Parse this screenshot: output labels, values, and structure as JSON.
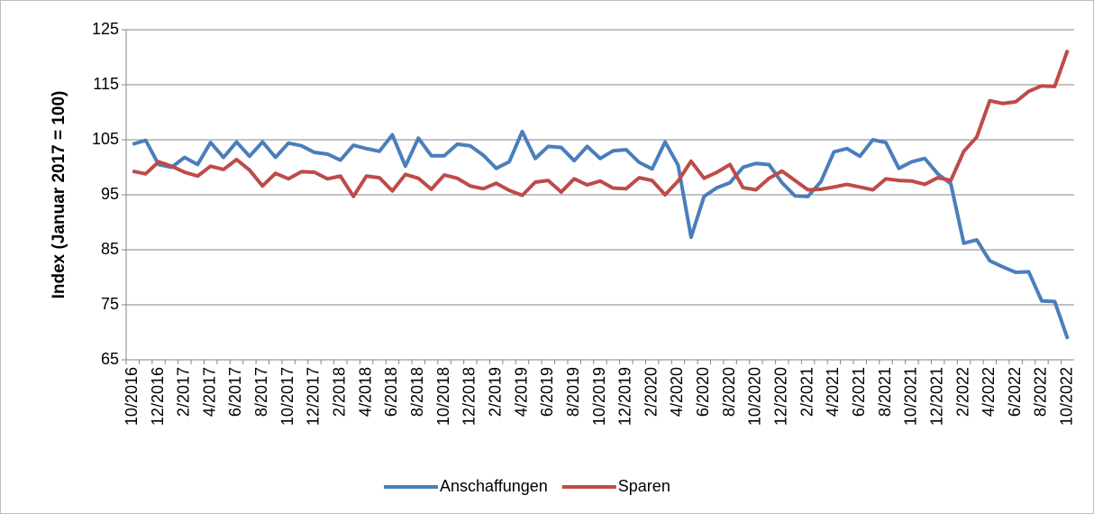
{
  "chart_data": {
    "type": "line",
    "y_label": "Index (Januar 2017 = 100)",
    "categories": [
      "10/2016",
      null,
      "12/2016",
      null,
      "2/2017",
      null,
      "4/2017",
      null,
      "6/2017",
      null,
      "8/2017",
      null,
      "10/2017",
      null,
      "12/2017",
      null,
      "2/2018",
      null,
      "4/2018",
      null,
      "6/2018",
      null,
      "8/2018",
      null,
      "10/2018",
      null,
      "12/2018",
      null,
      "2/2019",
      null,
      "4/2019",
      null,
      "6/2019",
      null,
      "8/2019",
      null,
      "10/2019",
      null,
      "12/2019",
      null,
      "2/2020",
      null,
      "4/2020",
      null,
      "6/2020",
      null,
      "8/2020",
      null,
      "10/2020",
      null,
      "12/2020",
      null,
      "2/2021",
      null,
      "4/2021",
      null,
      "6/2021",
      null,
      "8/2021",
      null,
      "10/2021",
      null,
      "12/2021",
      null,
      "2/2022",
      null,
      "4/2022",
      null,
      "6/2022",
      null,
      "8/2022",
      null,
      "10/2022"
    ],
    "series": [
      {
        "name": "Anschaffungen",
        "color": "#4a7ebb",
        "values": [
          104.2,
          104.9,
          100.5,
          100,
          101.8,
          100.5,
          104.5,
          101.8,
          104.6,
          102,
          104.6,
          101.8,
          104.4,
          103.9,
          102.7,
          102.4,
          101.3,
          104,
          103.4,
          102.9,
          105.9,
          100.2,
          105.3,
          102.1,
          102.1,
          104.2,
          103.9,
          102.2,
          99.8,
          101,
          106.5,
          101.6,
          103.8,
          103.6,
          101.2,
          103.8,
          101.6,
          103,
          103.2,
          100.9,
          99.7,
          104.6,
          100.4,
          87.3,
          94.7,
          96.3,
          97.2,
          100,
          100.7,
          100.5,
          97.2,
          94.8,
          94.7,
          97.4,
          102.8,
          103.4,
          102,
          105,
          104.5,
          99.8,
          101,
          101.6,
          98.8,
          97,
          86.2,
          86.8,
          83,
          81.9,
          80.9,
          81,
          75.7,
          75.6,
          68.8
        ]
      },
      {
        "name": "Sparen",
        "color": "#be4b48",
        "values": [
          99.3,
          98.8,
          101,
          100.2,
          99.1,
          98.4,
          100.2,
          99.6,
          101.4,
          99.5,
          96.6,
          98.9,
          97.9,
          99.2,
          99.1,
          97.9,
          98.4,
          94.7,
          98.4,
          98.1,
          95.7,
          98.7,
          98,
          96,
          98.6,
          98,
          96.6,
          96.1,
          97.1,
          95.8,
          94.9,
          97.3,
          97.6,
          95.5,
          97.9,
          96.8,
          97.5,
          96.2,
          96.1,
          98.1,
          97.6,
          95,
          97.5,
          101.1,
          98,
          99.1,
          100.5,
          96.3,
          95.9,
          98,
          99.3,
          97.6,
          95.9,
          96,
          96.4,
          96.9,
          96.4,
          95.9,
          97.9,
          97.6,
          97.5,
          96.9,
          98.1,
          97.6,
          102.9,
          105.5,
          112.1,
          111.6,
          111.9,
          113.8,
          114.8,
          114.7,
          121.3
        ]
      }
    ],
    "ylim": [
      65,
      125
    ],
    "yticks": [
      65,
      75,
      85,
      95,
      105,
      115,
      125
    ],
    "grid": true,
    "legend": "bottom"
  }
}
